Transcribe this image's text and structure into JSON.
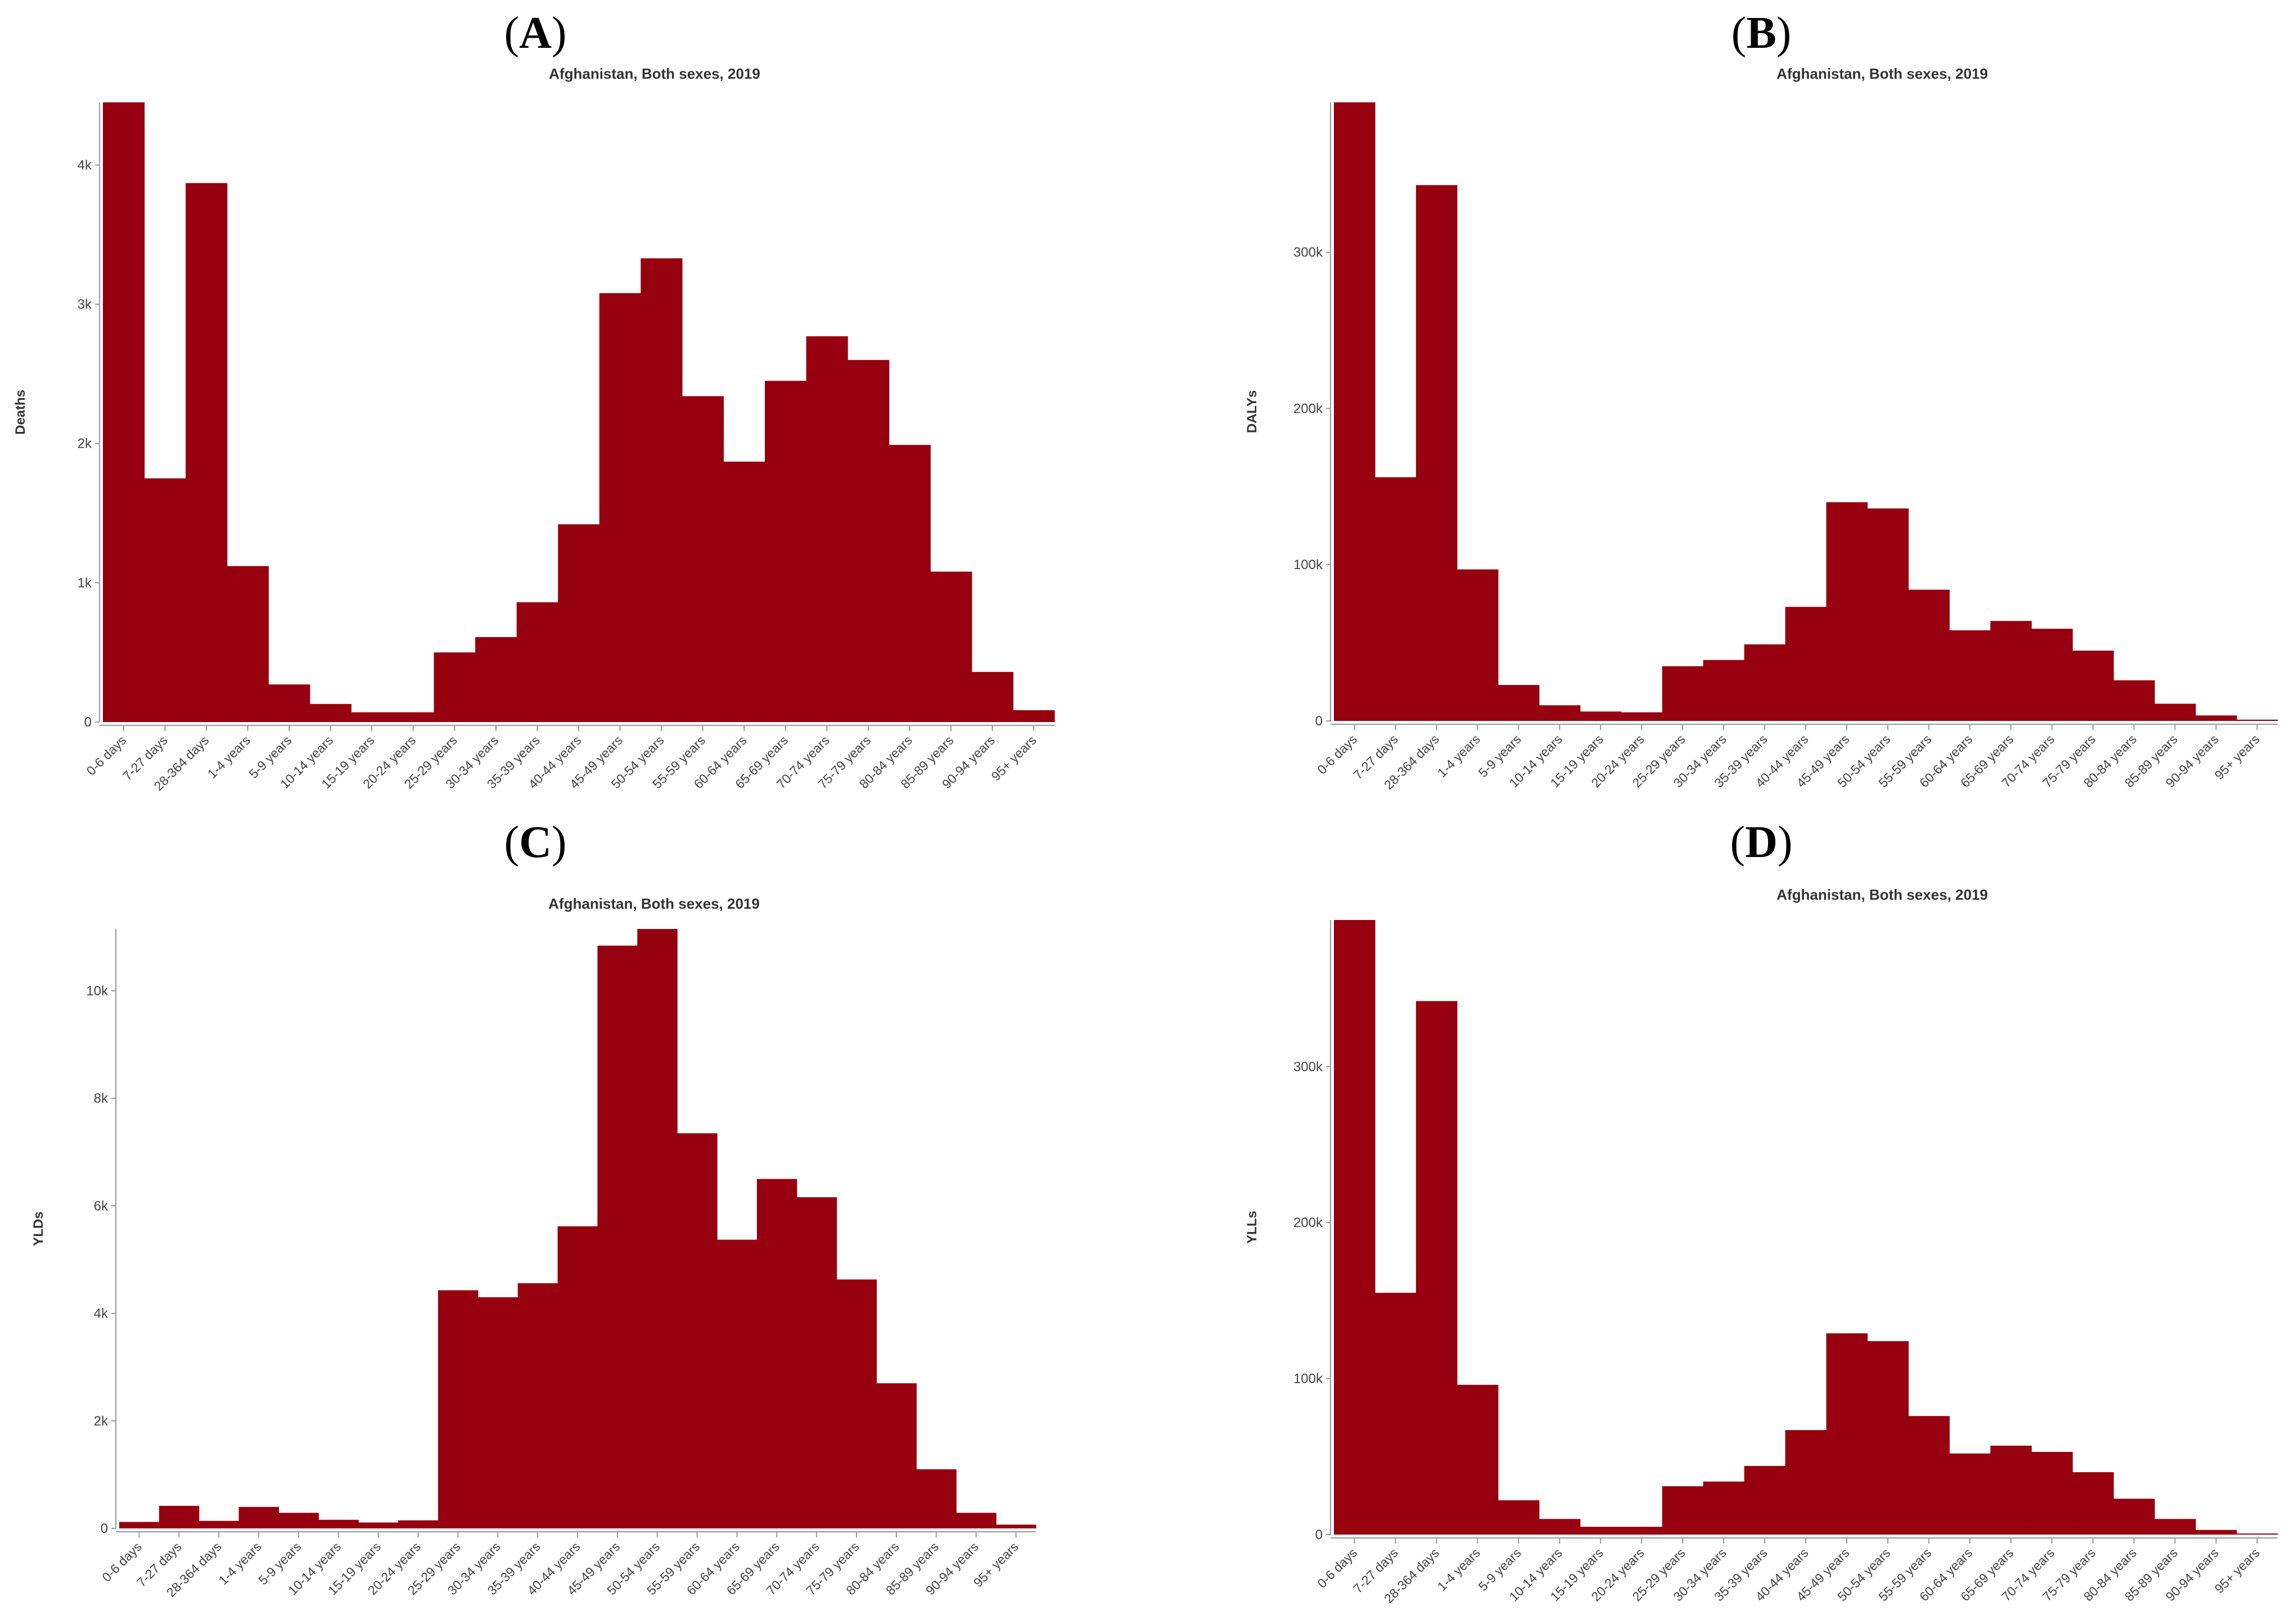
{
  "chart_data": [
    {
      "panel": "A",
      "type": "bar",
      "title": "Afghanistan, Both sexes, 2019",
      "xlabel": "",
      "ylabel": "Deaths",
      "ylim": [
        0,
        4450
      ],
      "yticks": [
        0,
        1000,
        2000,
        3000,
        4000
      ],
      "ytick_labels": [
        "0",
        "1k",
        "2k",
        "3k",
        "4k"
      ],
      "categories": [
        "0-6 days",
        "7-27 days",
        "28-364 days",
        "1-4 years",
        "5-9 years",
        "10-14 years",
        "15-19 years",
        "20-24 years",
        "25-29 years",
        "30-34 years",
        "35-39 years",
        "40-44 years",
        "45-49 years",
        "50-54 years",
        "55-59 years",
        "60-64 years",
        "65-69 years",
        "70-74 years",
        "75-79 years",
        "80-84 years",
        "85-89 years",
        "90-94 years",
        "95+ years"
      ],
      "values": [
        4450,
        1750,
        3870,
        1120,
        270,
        130,
        70,
        70,
        500,
        610,
        860,
        1420,
        3080,
        3330,
        2340,
        1870,
        2450,
        2770,
        2600,
        1990,
        1080,
        360,
        85
      ],
      "color": "#96000f"
    },
    {
      "panel": "B",
      "type": "bar",
      "title": "Afghanistan, Both sexes, 2019",
      "xlabel": "",
      "ylabel": "DALYs",
      "ylim": [
        0,
        396000
      ],
      "yticks": [
        0,
        100000,
        200000,
        300000
      ],
      "ytick_labels": [
        "0",
        "100k",
        "200k",
        "300k"
      ],
      "categories": [
        "0-6 days",
        "7-27 days",
        "28-364 days",
        "1-4 years",
        "5-9 years",
        "10-14 years",
        "15-19 years",
        "20-24 years",
        "25-29 years",
        "30-34 years",
        "35-39 years",
        "40-44 years",
        "45-49 years",
        "50-54 years",
        "55-59 years",
        "60-64 years",
        "65-69 years",
        "70-74 years",
        "75-79 years",
        "80-84 years",
        "85-89 years",
        "90-94 years",
        "95+ years"
      ],
      "values": [
        396000,
        156000,
        343000,
        97000,
        23000,
        10000,
        6000,
        5500,
        35000,
        39000,
        49000,
        73000,
        140000,
        136000,
        84000,
        58000,
        64000,
        59000,
        45000,
        26000,
        11000,
        3500,
        800
      ],
      "color": "#96000f"
    },
    {
      "panel": "C",
      "type": "bar",
      "title": "Afghanistan, Both sexes, 2019",
      "xlabel": "",
      "ylabel": "YLDs",
      "ylim": [
        0,
        11150
      ],
      "yticks": [
        0,
        2000,
        4000,
        6000,
        8000,
        10000
      ],
      "ytick_labels": [
        "0",
        "2k",
        "4k",
        "6k",
        "8k",
        "10k"
      ],
      "categories": [
        "0-6 days",
        "7-27 days",
        "28-364 days",
        "1-4 years",
        "5-9 years",
        "10-14 years",
        "15-19 years",
        "20-24 years",
        "25-29 years",
        "30-34 years",
        "35-39 years",
        "40-44 years",
        "45-49 years",
        "50-54 years",
        "55-59 years",
        "60-64 years",
        "65-69 years",
        "70-74 years",
        "75-79 years",
        "80-84 years",
        "85-89 years",
        "90-94 years",
        "95+ years"
      ],
      "values": [
        120,
        420,
        140,
        400,
        290,
        160,
        110,
        150,
        4430,
        4300,
        4560,
        5620,
        10840,
        11150,
        7350,
        5370,
        6500,
        6160,
        4630,
        2700,
        1100,
        290,
        70
      ],
      "color": "#96000f"
    },
    {
      "panel": "D",
      "type": "bar",
      "title": "Afghanistan, Both sexes, 2019",
      "xlabel": "",
      "ylabel": "YLLs",
      "ylim": [
        0,
        394000
      ],
      "yticks": [
        0,
        100000,
        200000,
        300000
      ],
      "ytick_labels": [
        "0",
        "100k",
        "200k",
        "300k"
      ],
      "categories": [
        "0-6 days",
        "7-27 days",
        "28-364 days",
        "1-4 years",
        "5-9 years",
        "10-14 years",
        "15-19 years",
        "20-24 years",
        "25-29 years",
        "30-34 years",
        "35-39 years",
        "40-44 years",
        "45-49 years",
        "50-54 years",
        "55-59 years",
        "60-64 years",
        "65-69 years",
        "70-74 years",
        "75-79 years",
        "80-84 years",
        "85-89 years",
        "90-94 years",
        "95+ years"
      ],
      "values": [
        394000,
        155000,
        342000,
        96000,
        22000,
        10000,
        5000,
        5000,
        31000,
        34000,
        44000,
        67000,
        129000,
        124000,
        76000,
        52000,
        57000,
        53000,
        40000,
        23000,
        10000,
        3000,
        700
      ],
      "color": "#96000f"
    }
  ]
}
